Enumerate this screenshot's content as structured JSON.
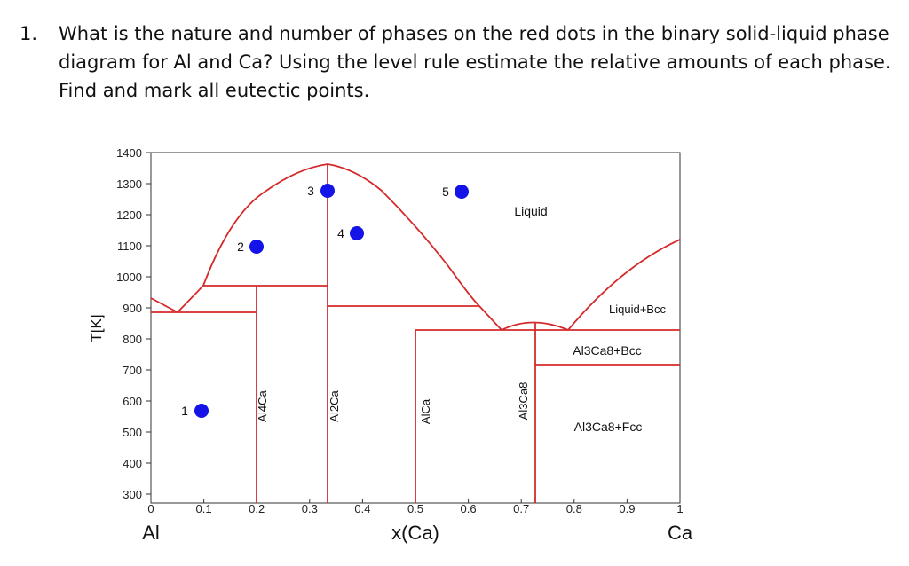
{
  "question": {
    "number": "1.",
    "text": "What is the nature and number of phases on the red dots in the binary solid-liquid phase diagram for Al and Ca? Using the level rule estimate the relative amounts of each phase. Find and mark all eutectic points."
  },
  "diagram": {
    "y_axis_label": "T[K]",
    "x_axis_label": "x(Ca)",
    "left_end_label": "Al",
    "right_end_label": "Ca",
    "y_ticks": [
      "1400",
      "1300",
      "1200",
      "1100",
      "1000",
      "900",
      "800",
      "700",
      "600",
      "500",
      "400",
      "300"
    ],
    "x_ticks": [
      "0",
      "0.1",
      "0.2",
      "0.3",
      "0.4",
      "0.5",
      "0.6",
      "0.7",
      "0.8",
      "0.9",
      "1"
    ],
    "regions": {
      "liquid": "Liquid",
      "liquid_bcc": "Liquid+Bcc",
      "al3ca8_bcc": "Al3Ca8+Bcc",
      "al3ca8_fcc": "Al3Ca8+Fcc"
    },
    "compounds": [
      "Al4Ca",
      "Al2Ca",
      "AlCa",
      "Al3Ca8"
    ],
    "points": [
      {
        "label": "1",
        "x": 0.1,
        "T": 580
      },
      {
        "label": "2",
        "x": 0.2,
        "T": 1080
      },
      {
        "label": "3",
        "x": 0.34,
        "T": 1310
      },
      {
        "label": "4",
        "x": 0.39,
        "T": 1150
      },
      {
        "label": "5",
        "x": 0.59,
        "T": 1305
      }
    ],
    "colors": {
      "phase_lines": "#d42a2a",
      "points": "#1414e8",
      "axes": "#333333"
    }
  }
}
